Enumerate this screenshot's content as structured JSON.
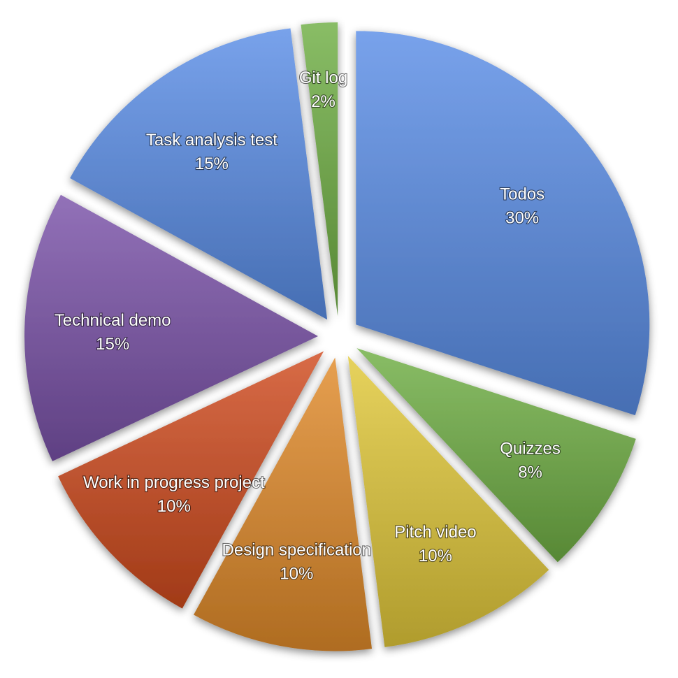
{
  "chart_data": {
    "type": "pie",
    "exploded": true,
    "start_angle_deg": 0,
    "direction": "clockwise",
    "slices": [
      {
        "label": "Todos",
        "value_label": "30%",
        "value": 30,
        "color": "#5a8de6"
      },
      {
        "label": "Quizzes",
        "value_label": "8%",
        "value": 8,
        "color": "#6fae44"
      },
      {
        "label": "Pitch video",
        "value_label": "10%",
        "value": 10,
        "color": "#e1c83a"
      },
      {
        "label": "Design specification",
        "value_label": "10%",
        "value": 10,
        "color": "#e08a2a"
      },
      {
        "label": "Work in progress project",
        "value_label": "10%",
        "value": 10,
        "color": "#cf4a1e"
      },
      {
        "label": "Technical demo",
        "value_label": "15%",
        "value": 15,
        "color": "#7a52a8"
      },
      {
        "label": "Task analysis test",
        "value_label": "15%",
        "value": 15,
        "color": "#5a8de6"
      },
      {
        "label": "Git log",
        "value_label": "2%",
        "value": 2,
        "color": "#6fae44"
      }
    ]
  }
}
